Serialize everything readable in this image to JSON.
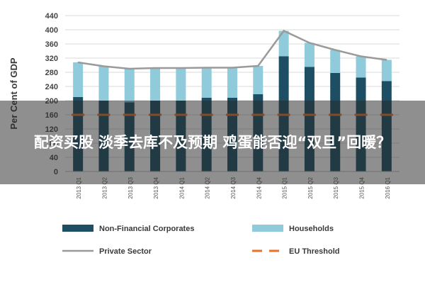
{
  "overlay": {
    "title": "配资买股 淡季去库不及预期 鸡蛋能否迎“双旦”回暖？"
  },
  "chart_data": {
    "type": "bar",
    "stacked": true,
    "ylabel": "Per Cent of GDP",
    "ylim": [
      0,
      440
    ],
    "yticks": [
      0,
      40,
      80,
      120,
      160,
      200,
      240,
      280,
      320,
      360,
      400,
      440
    ],
    "grid": true,
    "legend_position": "bottom",
    "categories": [
      "2013 Q1",
      "2013 Q2",
      "2013 Q3",
      "2013 Q4",
      "2014 Q1",
      "2014 Q2",
      "2014 Q3",
      "2014 Q4",
      "2015 Q1",
      "2015 Q2",
      "2015 Q3",
      "2015 Q4",
      "2016 Q1"
    ],
    "series": [
      {
        "name": "Non-Financial Corporates",
        "kind": "bar",
        "color": "#1d4e63",
        "values": [
          210,
          200,
          195,
          200,
          200,
          208,
          208,
          218,
          325,
          295,
          278,
          265,
          255
        ]
      },
      {
        "name": "Households",
        "kind": "bar",
        "color": "#8fcbdb",
        "values": [
          98,
          97,
          95,
          92,
          92,
          85,
          85,
          80,
          72,
          68,
          65,
          60,
          60
        ]
      },
      {
        "name": "Private Sector",
        "kind": "line",
        "color": "#9a9a9a",
        "values": [
          308,
          297,
          290,
          292,
          292,
          293,
          293,
          298,
          397,
          363,
          343,
          325,
          315
        ]
      },
      {
        "name": "EU Threshold",
        "kind": "dashed-line",
        "color": "#e8722a",
        "values": [
          160,
          160,
          160,
          160,
          160,
          160,
          160,
          160,
          160,
          160,
          160,
          160,
          160
        ]
      }
    ]
  }
}
